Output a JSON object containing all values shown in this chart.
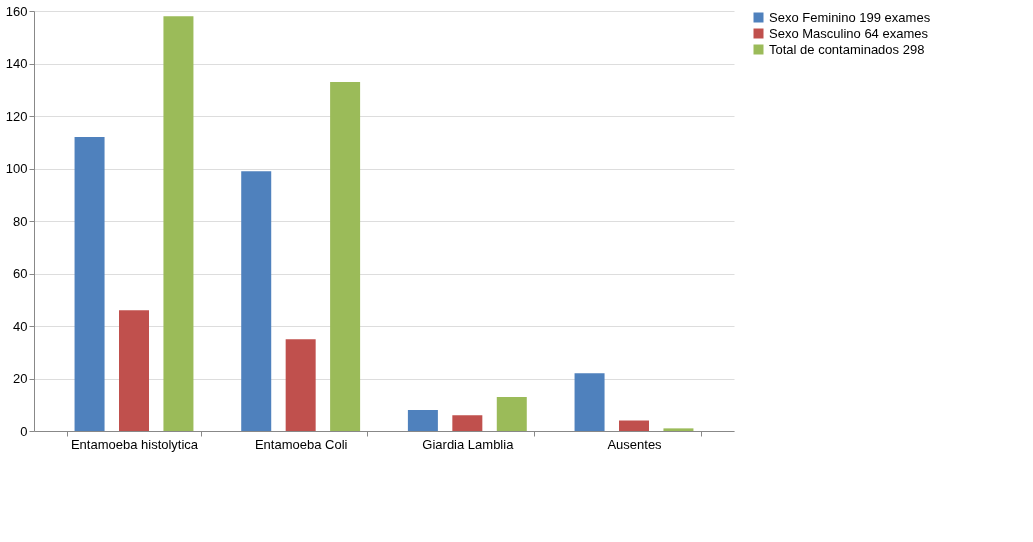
{
  "chart_data": {
    "type": "bar",
    "categories": [
      "Entamoeba histolytica",
      "Entamoeba Coli",
      "Giardia Lamblia",
      "Ausentes"
    ],
    "series": [
      {
        "name": "Sexo Feminino 199 exames",
        "color": "#4f81bd",
        "values": [
          112,
          99,
          8,
          22
        ]
      },
      {
        "name": "Sexo Masculino 64 exames",
        "color": "#c0504d",
        "values": [
          46,
          35,
          6,
          4
        ]
      },
      {
        "name": "Total de contaminados  298",
        "color": "#9bbb59",
        "values": [
          158,
          133,
          13,
          1
        ]
      }
    ],
    "ylim": [
      0,
      160
    ],
    "yticks": [
      0,
      20,
      40,
      60,
      80,
      100,
      120,
      140,
      160
    ],
    "grid": "y",
    "legend": "right"
  }
}
